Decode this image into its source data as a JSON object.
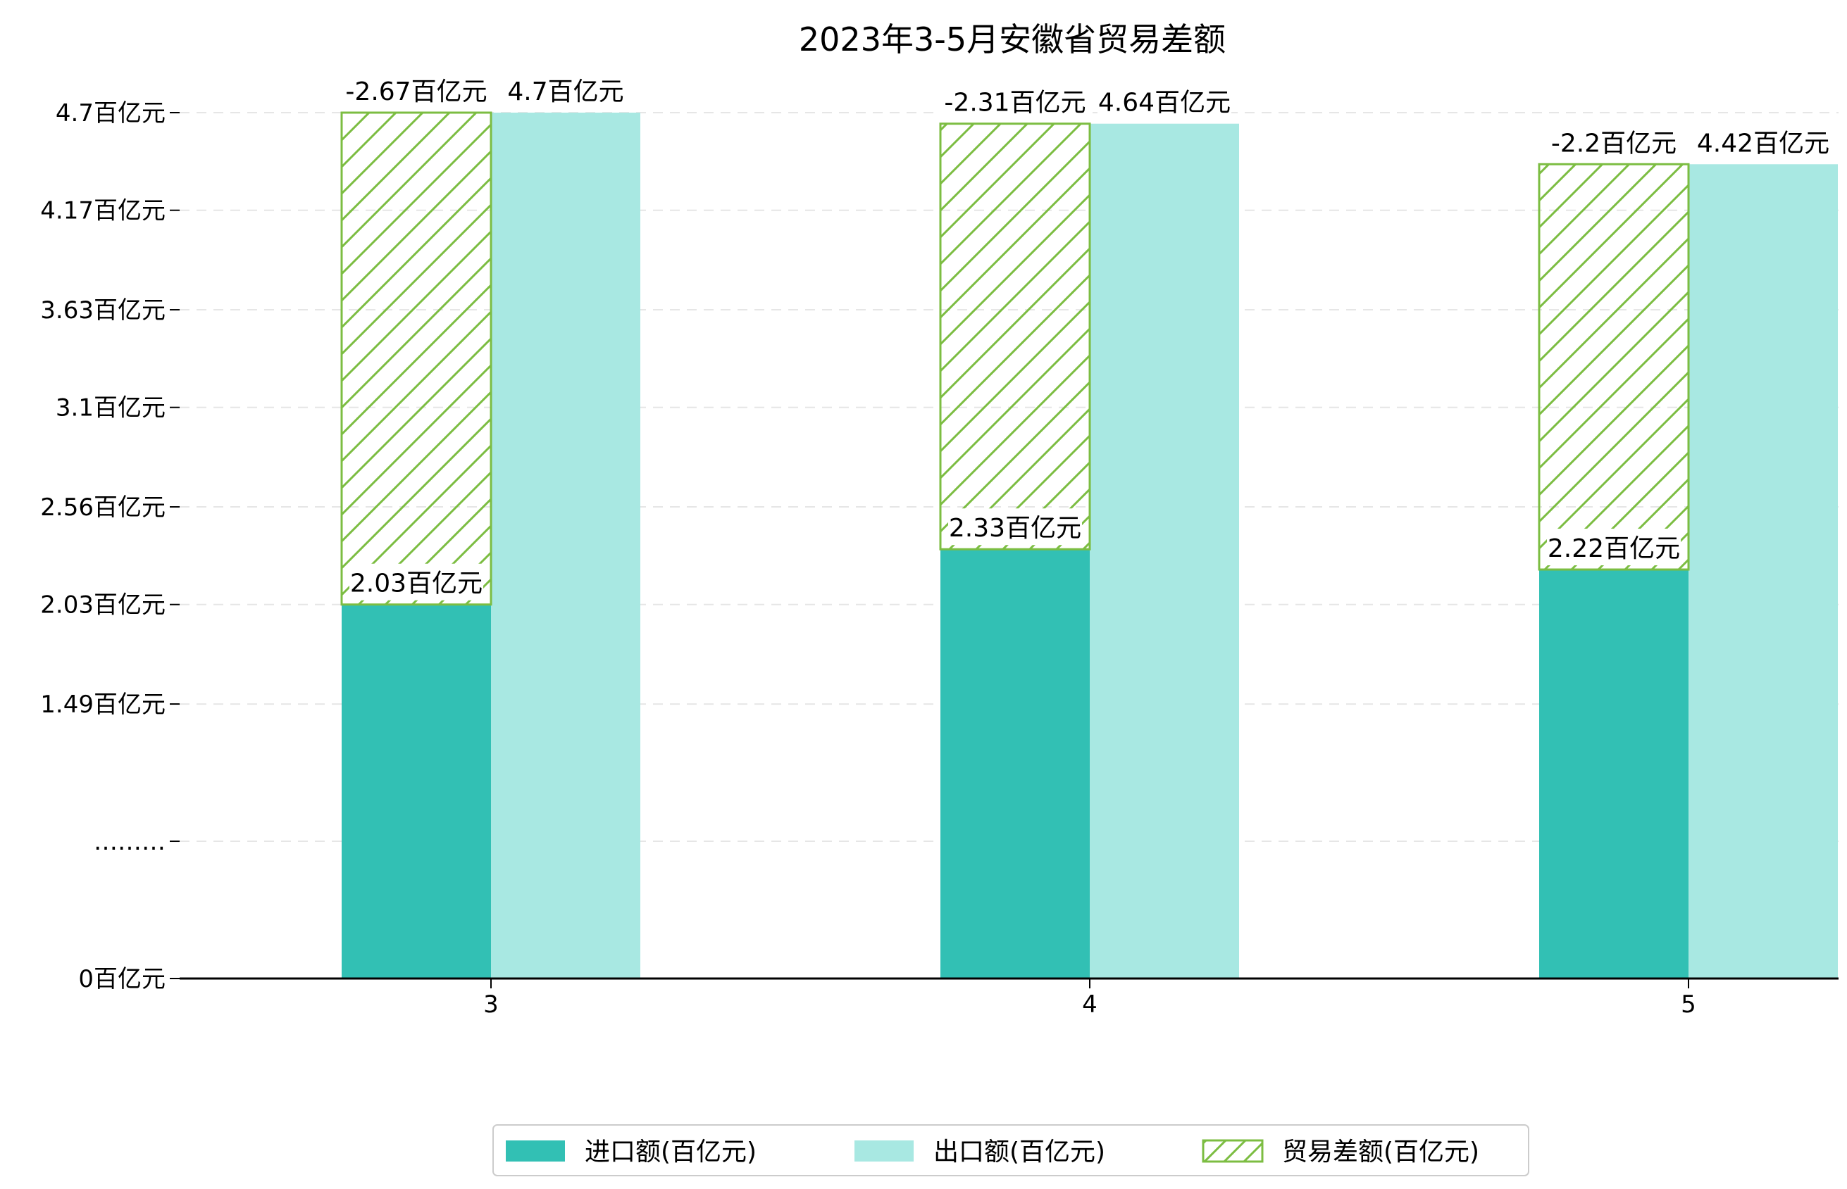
{
  "chart_data": {
    "type": "bar",
    "title": "2023年3-5月安徽省贸易差额",
    "categories": [
      "3",
      "4",
      "5"
    ],
    "series": [
      {
        "name": "进口额(百亿元)",
        "values": [
          2.03,
          2.33,
          2.22
        ],
        "labels": [
          "2.03百亿元",
          "2.33百亿元",
          "2.22百亿元"
        ],
        "color": "#32c0b4"
      },
      {
        "name": "出口额(百亿元)",
        "values": [
          4.7,
          4.64,
          4.42
        ],
        "labels": [
          "4.7百亿元",
          "4.64百亿元",
          "4.42百亿元"
        ],
        "color": "#a8e8e2"
      },
      {
        "name": "贸易差额(百亿元)",
        "values": [
          -2.67,
          -2.31,
          -2.2
        ],
        "labels": [
          "-2.67百亿元",
          "-2.31百亿元",
          "-2.2百亿元"
        ],
        "color": "#7cbd42",
        "pattern": "hatch"
      }
    ],
    "yticks": [
      {
        "label": "0百亿元",
        "value": 0
      },
      {
        "label": "………",
        "value": null
      },
      {
        "label": "1.49百亿元",
        "value": 1.49
      },
      {
        "label": "2.03百亿元",
        "value": 2.03
      },
      {
        "label": "2.56百亿元",
        "value": 2.56
      },
      {
        "label": "3.1百亿元",
        "value": 3.1
      },
      {
        "label": "3.63百亿元",
        "value": 3.63
      },
      {
        "label": "4.17百亿元",
        "value": 4.17
      },
      {
        "label": "4.7百亿元",
        "value": 4.7
      }
    ],
    "grid": true,
    "legend_position": "bottom-center"
  }
}
